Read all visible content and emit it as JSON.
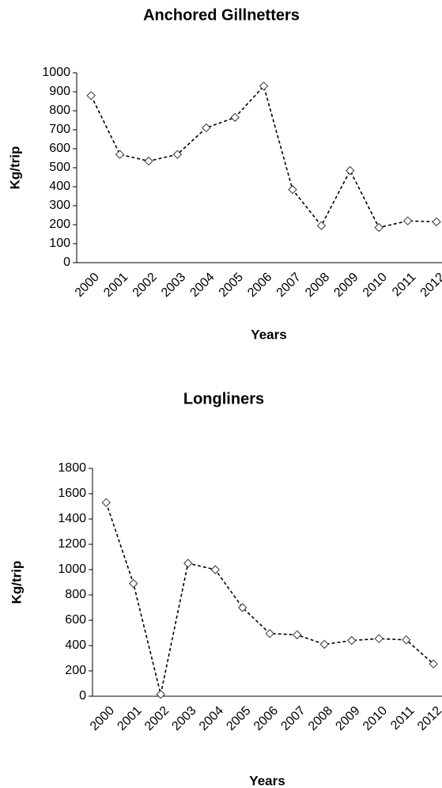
{
  "chart_data": [
    {
      "type": "line",
      "title": "Anchored Gillnetters",
      "x_label": "Years",
      "y_label": "Kg/trip",
      "categories": [
        "2000",
        "2001",
        "2002",
        "2003",
        "2004",
        "2005",
        "2006",
        "2007",
        "2008",
        "2009",
        "2010",
        "2011",
        "2012"
      ],
      "values": [
        880,
        570,
        535,
        570,
        710,
        765,
        930,
        385,
        195,
        485,
        185,
        220,
        215
      ],
      "color": "#000000",
      "line_style": "dashed",
      "ylim": [
        0,
        1000
      ],
      "yticks": [
        0,
        100,
        200,
        300,
        400,
        500,
        600,
        700,
        800,
        900,
        1000
      ]
    },
    {
      "type": "line",
      "title": "Longliners",
      "x_label": "Years",
      "y_label": "Kg/trip",
      "categories": [
        "2000",
        "2001",
        "2002",
        "2003",
        "2004",
        "2005",
        "2006",
        "2007",
        "2008",
        "2009",
        "2010",
        "2011",
        "2012"
      ],
      "values": [
        1530,
        890,
        15,
        1050,
        1000,
        700,
        495,
        485,
        410,
        440,
        455,
        445,
        255
      ],
      "color": "#000000",
      "line_style": "dashed",
      "ylim": [
        0,
        1800
      ],
      "yticks": [
        0,
        200,
        400,
        600,
        800,
        1000,
        1200,
        1400,
        1600,
        1800
      ]
    }
  ]
}
